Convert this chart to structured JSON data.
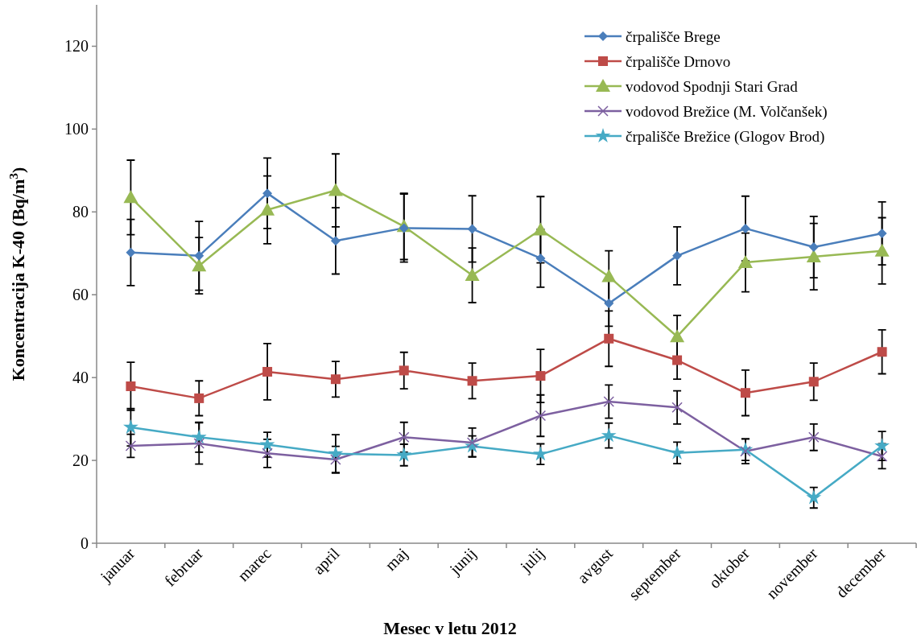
{
  "chart_data": {
    "type": "line",
    "xlabel": "Mesec v letu 2012",
    "ylabel": "Koncentracija K-40 (Bq/m$^{3}$)",
    "categories": [
      "januar",
      "februar",
      "marec",
      "april",
      "maj",
      "junij",
      "julij",
      "avgust",
      "september",
      "oktober",
      "november",
      "december"
    ],
    "ylim": [
      0,
      130
    ],
    "yticks": [
      0,
      20,
      40,
      60,
      80,
      100,
      120
    ],
    "grid": false,
    "legend": "top right",
    "series": [
      {
        "name": "črpališče Brege",
        "color": "#4a7ebb",
        "marker": "diamond",
        "values": [
          70.2,
          69.4,
          84.5,
          73,
          76.1,
          75.9,
          68.8,
          57.9,
          69.4,
          76,
          71.5,
          74.8
        ],
        "errors": [
          8,
          8.3,
          8.5,
          8,
          8.2,
          8,
          7,
          5.5,
          7,
          7.8,
          7.4,
          7.6
        ]
      },
      {
        "name": "črpališče Drnovo",
        "color": "#be4b48",
        "marker": "square",
        "values": [
          37.9,
          35,
          41.4,
          39.6,
          41.7,
          39.2,
          40.4,
          49.4,
          44.2,
          36.3,
          39,
          46.2
        ],
        "errors": [
          5.8,
          4.2,
          6.8,
          4.3,
          4.4,
          4.3,
          6.4,
          6.7,
          4.6,
          5.5,
          4.5,
          5.3
        ]
      },
      {
        "name": "vodovod Spodnji Stari Grad",
        "color": "#98b954",
        "marker": "triangle",
        "values": [
          83.5,
          67,
          80.5,
          85.2,
          76.5,
          64.7,
          75.7,
          64.4,
          49.9,
          67.8,
          69.2,
          70.6
        ],
        "errors": [
          9,
          6.8,
          8.2,
          8.8,
          8,
          6.6,
          8,
          6.2,
          5.1,
          7.1,
          8,
          8
        ]
      },
      {
        "name": "vodovod Brežice (M. Volčanšek)",
        "color": "#7d60a0",
        "marker": "cross",
        "values": [
          23.5,
          24.1,
          21.7,
          20.2,
          25.6,
          24.3,
          30.8,
          34.2,
          32.8,
          22.2,
          25.6,
          21
        ],
        "errors": [
          2.8,
          5,
          3.4,
          3.2,
          3.6,
          3.5,
          5,
          4,
          4,
          3,
          3.2,
          3
        ]
      },
      {
        "name": "črpališče Brežice (Glogov Brod)",
        "color": "#46aac5",
        "marker": "star",
        "values": [
          28,
          25.6,
          23.8,
          21.6,
          21.3,
          23.4,
          21.5,
          26,
          21.8,
          22.6,
          11,
          23.5
        ],
        "errors": [
          4.5,
          3.6,
          3,
          4.6,
          2.6,
          2.5,
          2.5,
          3,
          2.6,
          2.6,
          2.5,
          3.5
        ]
      }
    ]
  }
}
